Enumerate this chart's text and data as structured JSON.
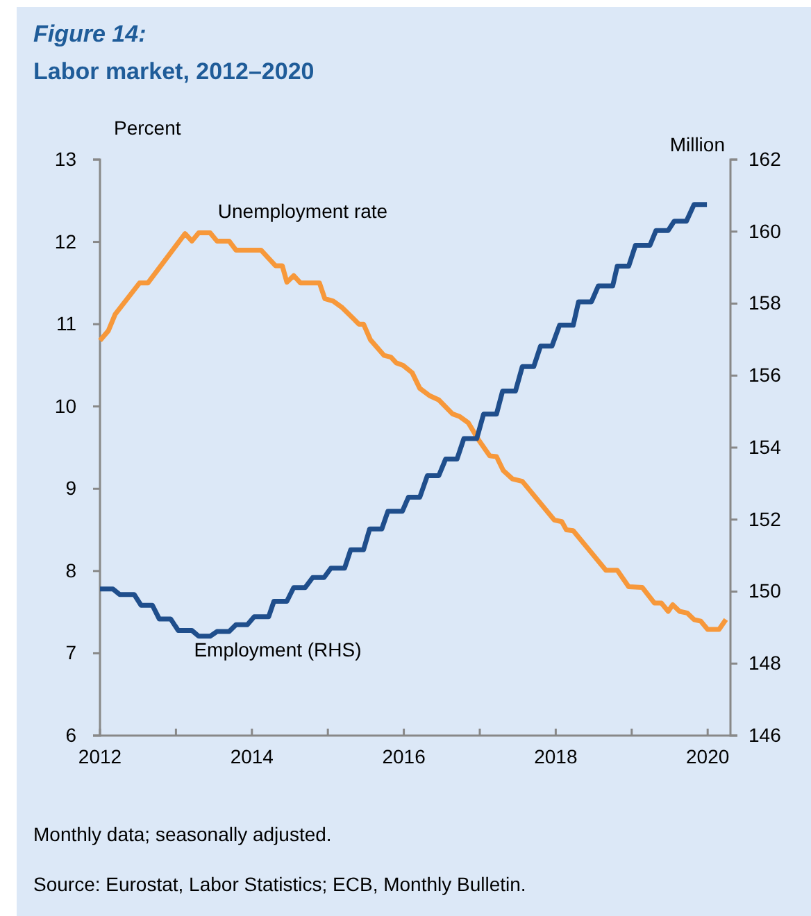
{
  "chart_data": {
    "type": "line",
    "title": "Figure 14:",
    "subtitle": "Labor market, 2012–2020",
    "ylabel": "Percent",
    "y2label": "Million",
    "xlim": [
      2012,
      2020.3
    ],
    "xticks": [
      {
        "value": 2012,
        "label": "2012"
      },
      {
        "value": 2013,
        "label": null
      },
      {
        "value": 2014,
        "label": "2014"
      },
      {
        "value": 2015,
        "label": null
      },
      {
        "value": 2016,
        "label": "2016"
      },
      {
        "value": 2017,
        "label": null
      },
      {
        "value": 2018,
        "label": "2018"
      },
      {
        "value": 2019,
        "label": null
      },
      {
        "value": 2020,
        "label": "2020"
      }
    ],
    "ylim": [
      6,
      13
    ],
    "yticks": [
      6,
      7,
      8,
      9,
      10,
      11,
      12,
      13
    ],
    "y2lim": [
      146,
      162
    ],
    "y2ticks": [
      146,
      148,
      150,
      152,
      154,
      156,
      158,
      160,
      162
    ],
    "grid": false,
    "legend": false,
    "marker": "none",
    "line_style": "solid",
    "series": [
      {
        "name": "Unemployment rate",
        "color": "#f7983a",
        "x": [
          2012.0,
          2012.11,
          2012.2,
          2012.52,
          2012.63,
          2013.12,
          2013.21,
          2013.3,
          2013.45,
          2013.54,
          2013.7,
          2013.79,
          2014.12,
          2014.31,
          2014.4,
          2014.46,
          2014.55,
          2014.64,
          2014.89,
          2014.96,
          2015.07,
          2015.19,
          2015.41,
          2015.47,
          2015.56,
          2015.74,
          2015.83,
          2015.9,
          2015.99,
          2016.11,
          2016.21,
          2016.34,
          2016.46,
          2016.64,
          2016.73,
          2016.85,
          2016.98,
          2017.13,
          2017.22,
          2017.31,
          2017.43,
          2017.56,
          2017.98,
          2018.08,
          2018.14,
          2018.23,
          2018.66,
          2018.81,
          2018.96,
          2019.14,
          2019.3,
          2019.39,
          2019.48,
          2019.54,
          2019.63,
          2019.73,
          2019.82,
          2019.91,
          2020.0,
          2020.15,
          2020.24
        ],
        "values": [
          10.8,
          10.92,
          11.12,
          11.5,
          11.5,
          12.1,
          12.01,
          12.11,
          12.11,
          12.01,
          12.01,
          11.9,
          11.9,
          11.71,
          11.71,
          11.51,
          11.59,
          11.5,
          11.5,
          11.31,
          11.28,
          11.2,
          11.0,
          11.0,
          10.81,
          10.62,
          10.6,
          10.53,
          10.5,
          10.41,
          10.22,
          10.13,
          10.08,
          9.91,
          9.88,
          9.8,
          9.6,
          9.4,
          9.39,
          9.22,
          9.12,
          9.09,
          8.62,
          8.6,
          8.5,
          8.49,
          8.01,
          8.01,
          7.81,
          7.8,
          7.61,
          7.61,
          7.51,
          7.59,
          7.51,
          7.49,
          7.41,
          7.39,
          7.29,
          7.29,
          7.41
        ]
      },
      {
        "name": "Employment (RHS)",
        "color": "#1f4e8c",
        "axis": "y2",
        "x": [
          2012.0,
          2012.17,
          2012.26,
          2012.45,
          2012.54,
          2012.69,
          2012.78,
          2012.93,
          2013.03,
          2013.21,
          2013.3,
          2013.45,
          2013.54,
          2013.7,
          2013.79,
          2013.94,
          2014.03,
          2014.22,
          2014.29,
          2014.46,
          2014.55,
          2014.7,
          2014.8,
          2014.95,
          2015.04,
          2015.22,
          2015.3,
          2015.47,
          2015.55,
          2015.71,
          2015.79,
          2015.98,
          2016.06,
          2016.21,
          2016.31,
          2016.46,
          2016.55,
          2016.7,
          2016.79,
          2016.96,
          2017.05,
          2017.22,
          2017.3,
          2017.47,
          2017.56,
          2017.71,
          2017.8,
          2017.95,
          2018.05,
          2018.23,
          2018.3,
          2018.47,
          2018.56,
          2018.75,
          2018.81,
          2018.96,
          2019.05,
          2019.24,
          2019.32,
          2019.48,
          2019.56,
          2019.72,
          2019.82,
          2019.99
        ],
        "values": [
          150.07,
          150.07,
          149.92,
          149.92,
          149.62,
          149.62,
          149.24,
          149.24,
          148.92,
          148.92,
          148.76,
          148.76,
          148.89,
          148.89,
          149.08,
          149.08,
          149.3,
          149.3,
          149.73,
          149.73,
          150.11,
          150.11,
          150.39,
          150.39,
          150.65,
          150.65,
          151.16,
          151.16,
          151.74,
          151.74,
          152.23,
          152.23,
          152.62,
          152.62,
          153.22,
          153.22,
          153.68,
          153.68,
          154.25,
          154.25,
          154.93,
          154.93,
          155.57,
          155.57,
          156.25,
          156.25,
          156.82,
          156.82,
          157.4,
          157.4,
          158.05,
          158.05,
          158.49,
          158.49,
          159.04,
          159.04,
          159.62,
          159.62,
          160.03,
          160.03,
          160.29,
          160.29,
          160.75,
          160.75
        ]
      }
    ],
    "annotations": [
      "Monthly data; seasonally adjusted.",
      "Source: Eurostat, Labor Statistics; ECB, Monthly Bulletin."
    ]
  }
}
